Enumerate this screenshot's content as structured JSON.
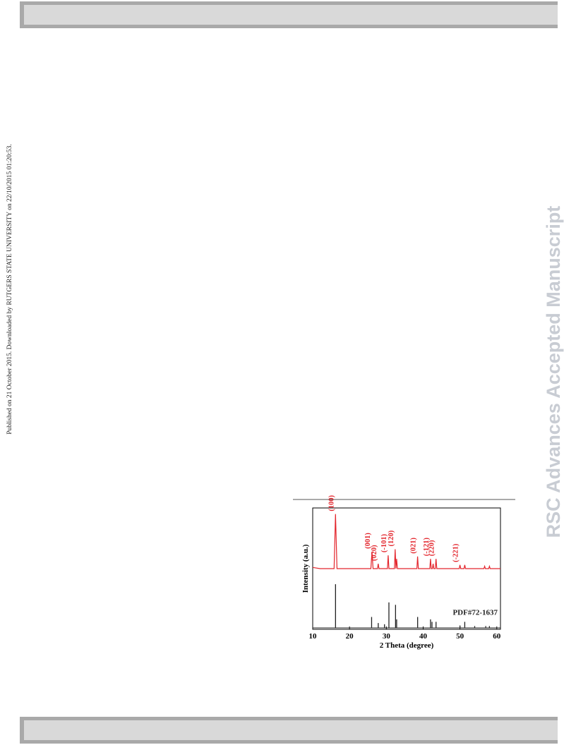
{
  "side_note": "Published on 21 October 2015. Downloaded by RUTGERS STATE UNIVERSITY on 22/10/2015 01:20:53.",
  "watermark": "RSC Advances Accepted Manuscript",
  "chart_data": {
    "type": "line",
    "x_label": "2 Theta (degree)",
    "y_label": "Intensity (a.u.)",
    "xlim": [
      10,
      61
    ],
    "xticks": [
      10,
      20,
      30,
      40,
      50,
      60
    ],
    "ylim": [
      0,
      100
    ],
    "series": [
      {
        "color": "#e3262d",
        "mark": "line",
        "x": [
          10,
          12,
          15.8,
          16.2,
          16.6,
          25.8,
          26.1,
          26.4,
          27.6,
          27.8,
          28.0,
          30.3,
          30.5,
          30.7,
          32.2,
          32.4,
          32.6,
          32.8,
          33.0,
          38.3,
          38.5,
          38.7,
          41.8,
          42.0,
          42.2,
          42.5,
          42.7,
          42.9,
          43.3,
          43.5,
          43.7,
          49.8,
          50.0,
          50.2,
          51.1,
          51.3,
          51.5,
          56.5,
          56.7,
          56.9,
          57.8,
          58.0,
          58.2,
          61
        ],
        "values": [
          51,
          50,
          50,
          95,
          50,
          50,
          64,
          50,
          50,
          54,
          50,
          50,
          61,
          50,
          50,
          66,
          50,
          58,
          50,
          50,
          60,
          50,
          50,
          58,
          50,
          50,
          54,
          50,
          50,
          58,
          50,
          50,
          53,
          50,
          50,
          53,
          50,
          50,
          52,
          50,
          50,
          52,
          50,
          50
        ]
      },
      {
        "name": "PDF#72-1637",
        "color": "#222222",
        "mark": "stick",
        "x": [
          16.2,
          26.0,
          27.8,
          29.5,
          30.7,
          32.5,
          32.8,
          38.5,
          42.0,
          42.4,
          43.5,
          50.0,
          51.3,
          54.0,
          57.0,
          58.0
        ],
        "values": [
          36,
          9,
          4,
          3,
          21,
          19,
          7,
          9,
          7,
          5,
          5,
          2,
          5,
          1.5,
          1.5,
          1.5
        ]
      }
    ],
    "annotations": [
      {
        "text": "(100)",
        "x": 16.2
      },
      {
        "text": "(001)",
        "x": 26.1
      },
      {
        "text": "(020)",
        "x": 27.8
      },
      {
        "text": "(-101)",
        "x": 30.5
      },
      {
        "text": "(120)",
        "x": 32.4
      },
      {
        "text": "(021)",
        "x": 38.5
      },
      {
        "text": "(-121)",
        "x": 42.0
      },
      {
        "text": "(220)",
        "x": 43.5
      },
      {
        "text": "(-221)",
        "x": 50.0
      }
    ]
  }
}
